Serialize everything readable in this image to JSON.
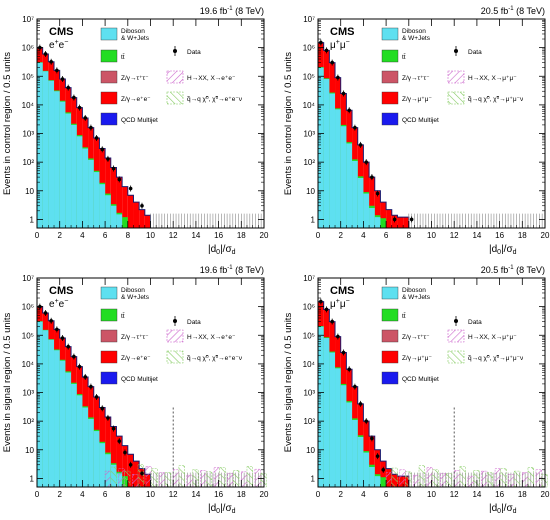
{
  "figure": {
    "panels_note": "2x2 grid of CMS histograms",
    "colors": {
      "diboson": "#5ee0f0",
      "ttbar": "#22dd22",
      "ztautau": "#cc5566",
      "zll": "#ff0000",
      "qcd": "#1a1aee",
      "hxx": "#cc66cc",
      "squark": "#88cc66",
      "data": "#000000",
      "frame": "#000000"
    }
  },
  "chart_data": [
    {
      "type": "bar",
      "panel": "top-left",
      "lumi": "19.6 fb",
      "lumi_sup": "-1",
      "energy": "(8 TeV)",
      "cms": "CMS",
      "channel": "e",
      "ylabel": "Events in control region / 0.5 units",
      "xlabel": "|d",
      "xlabel_sub": "0",
      "xlabel_tail": "|/σ",
      "xlabel_tail_sub": "d",
      "xlim": [
        0,
        20
      ],
      "ylim_log10": [
        -0.3,
        7
      ],
      "yscale": "log",
      "x_ticks": [
        "0",
        "2",
        "4",
        "6",
        "8",
        "10",
        "12",
        "14",
        "16",
        "18",
        "20"
      ],
      "y_ticks": [
        "1",
        "10",
        "10²",
        "10³",
        "10⁴",
        "10⁵",
        "10⁶",
        "10⁷"
      ],
      "legend": [
        {
          "key": "diboson",
          "label": "Diboson & W+Jets"
        },
        {
          "key": "data",
          "label": "Data"
        },
        {
          "key": "ttbar",
          "label": "tt̄"
        },
        {
          "key": "ztautau",
          "label": "Z/γ→τ⁺τ⁻"
        },
        {
          "key": "hxx",
          "label": "H→XX, X→e⁺e⁻"
        },
        {
          "key": "zll",
          "label": "Z/γ→e⁺e⁻"
        },
        {
          "key": "squark",
          "label": "q̃→q χ̃⁰, χ̃⁰→e⁺e⁻ν"
        },
        {
          "key": "qcd",
          "label": "QCD Multijet"
        }
      ],
      "total_bkg": [
        1000000,
        600000,
        320000,
        160000,
        80000,
        40000,
        18000,
        8000,
        3500,
        1600,
        700,
        300,
        140,
        65,
        30,
        14,
        7,
        4,
        2.2,
        1.4
      ],
      "diboson": [
        300000,
        150000,
        70000,
        30000,
        13000,
        5000,
        2000,
        800,
        300,
        120,
        45,
        17,
        7,
        3,
        1.5
      ],
      "ttbar_top": [
        310000,
        155000,
        73000,
        32000,
        14000,
        5500,
        2200,
        880,
        330,
        135,
        50,
        19,
        8,
        3.4,
        1.7,
        1.2
      ],
      "ztautau_top": [],
      "data_points": [
        [
          0.25,
          1000000
        ],
        [
          0.75,
          600000
        ],
        [
          1.25,
          320000
        ],
        [
          1.75,
          160000
        ],
        [
          2.25,
          80000
        ],
        [
          2.75,
          40000
        ],
        [
          3.25,
          18000
        ],
        [
          3.75,
          8000
        ],
        [
          4.25,
          3500
        ],
        [
          4.75,
          1600
        ],
        [
          5.25,
          700
        ],
        [
          5.75,
          280
        ],
        [
          6.25,
          130
        ],
        [
          6.75,
          60
        ],
        [
          7.25,
          25
        ],
        [
          8.25,
          12
        ],
        [
          9.25,
          3
        ]
      ],
      "signal_hxx": [],
      "signal_squark": [],
      "marker_line_x": null
    },
    {
      "type": "bar",
      "panel": "top-right",
      "lumi": "20.5 fb",
      "lumi_sup": "-1",
      "energy": "(8 TeV)",
      "cms": "CMS",
      "channel": "μ",
      "ylabel": "Events in control region / 0.5 units",
      "xlabel": "|d",
      "xlabel_sub": "0",
      "xlabel_tail": "|/σ",
      "xlabel_tail_sub": "d",
      "xlim": [
        0,
        20
      ],
      "ylim_log10": [
        -0.3,
        7
      ],
      "yscale": "log",
      "x_ticks": [
        "0",
        "2",
        "4",
        "6",
        "8",
        "10",
        "12",
        "14",
        "16",
        "18",
        "20"
      ],
      "y_ticks": [
        "1",
        "10",
        "10²",
        "10³",
        "10⁴",
        "10⁵",
        "10⁶",
        "10⁷"
      ],
      "legend": [
        {
          "key": "diboson",
          "label": "Diboson & W+Jets"
        },
        {
          "key": "data",
          "label": "Data"
        },
        {
          "key": "ttbar",
          "label": "tt̄"
        },
        {
          "key": "ztautau",
          "label": "Z/γ→τ⁺τ⁻"
        },
        {
          "key": "hxx",
          "label": "H→XX, X→μ⁺μ⁻"
        },
        {
          "key": "zll",
          "label": "Z/γ→μ⁺μ⁻"
        },
        {
          "key": "squark",
          "label": "q̃→q χ̃⁰, χ̃⁰→μ⁺μ⁻ν"
        },
        {
          "key": "qcd",
          "label": "QCD Multijet"
        }
      ],
      "total_bkg": [
        1500000,
        800000,
        300000,
        90000,
        25000,
        6500,
        1600,
        400,
        100,
        30,
        10,
        4,
        2.2,
        1.4,
        1.2,
        1.2
      ],
      "diboson": [
        200000,
        80000,
        25000,
        7000,
        1800,
        450,
        110,
        28,
        8,
        2.5,
        1.2
      ],
      "ttbar_top": [
        210000,
        85000,
        27000,
        7600,
        2000,
        500,
        125,
        32,
        9,
        3,
        1.4,
        1.1
      ],
      "ztautau_top": [],
      "data_points": [
        [
          0.25,
          1500000
        ],
        [
          0.75,
          800000
        ],
        [
          1.25,
          300000
        ],
        [
          1.75,
          90000
        ],
        [
          2.25,
          25000
        ],
        [
          2.75,
          6500
        ],
        [
          3.25,
          1600
        ],
        [
          3.75,
          400
        ],
        [
          4.25,
          100
        ],
        [
          4.75,
          30
        ],
        [
          5.25,
          8
        ],
        [
          6.75,
          1
        ],
        [
          8.25,
          1
        ]
      ],
      "signal_hxx": [],
      "signal_squark": [],
      "marker_line_x": null
    },
    {
      "type": "bar",
      "panel": "bottom-left",
      "lumi": "19.6 fb",
      "lumi_sup": "-1",
      "energy": "(8 TeV)",
      "cms": "CMS",
      "channel": "e",
      "ylabel": "Events in signal region / 0.5 units",
      "xlabel": "|d",
      "xlabel_sub": "0",
      "xlabel_tail": "|/σ",
      "xlabel_tail_sub": "d",
      "xlim": [
        0,
        20
      ],
      "ylim_log10": [
        -0.3,
        7
      ],
      "yscale": "log",
      "x_ticks": [
        "0",
        "2",
        "4",
        "6",
        "8",
        "10",
        "12",
        "14",
        "16",
        "18",
        "20"
      ],
      "y_ticks": [
        "1",
        "10",
        "10²",
        "10³",
        "10⁴",
        "10⁵",
        "10⁶",
        "10⁷"
      ],
      "legend": [
        {
          "key": "diboson",
          "label": "Diboson & W+Jets"
        },
        {
          "key": "ttbar",
          "label": "tt̄"
        },
        {
          "key": "data",
          "label": "Data"
        },
        {
          "key": "ztautau",
          "label": "Z/γ→τ⁺τ⁻"
        },
        {
          "key": "hxx",
          "label": "H→XX, X→e⁺e⁻"
        },
        {
          "key": "zll",
          "label": "Z/γ→e⁺e⁻"
        },
        {
          "key": "squark",
          "label": "q̃→q χ̃⁰, χ̃⁰→e⁺e⁻ν"
        },
        {
          "key": "qcd",
          "label": "QCD Multijet"
        }
      ],
      "total_bkg": [
        1000000,
        600000,
        320000,
        160000,
        80000,
        40000,
        18000,
        8000,
        3500,
        1600,
        700,
        300,
        140,
        65,
        30,
        14,
        7,
        4,
        2.2,
        1.4
      ],
      "diboson": [
        300000,
        150000,
        70000,
        30000,
        13000,
        5000,
        2000,
        800,
        300,
        120,
        45,
        17,
        7,
        3,
        1.5
      ],
      "ttbar_top": [
        310000,
        155000,
        73000,
        32000,
        14000,
        5500,
        2200,
        880,
        330,
        135,
        50,
        19,
        8,
        3.4,
        1.7,
        1.2
      ],
      "ztautau_top": [],
      "data_points": [
        [
          0.25,
          1000000
        ],
        [
          0.75,
          600000
        ],
        [
          1.25,
          320000
        ],
        [
          1.75,
          160000
        ],
        [
          2.25,
          80000
        ],
        [
          2.75,
          40000
        ],
        [
          3.25,
          18000
        ],
        [
          3.75,
          8000
        ],
        [
          4.25,
          3500
        ],
        [
          4.75,
          1600
        ],
        [
          5.25,
          700
        ],
        [
          5.75,
          280
        ],
        [
          6.25,
          130
        ],
        [
          6.75,
          55
        ],
        [
          7.25,
          20
        ],
        [
          7.75,
          8
        ],
        [
          8.25,
          3
        ],
        [
          9.25,
          1.5
        ]
      ],
      "signal_hxx": [
        1.8,
        2.2,
        1.4,
        2.6,
        1.6,
        2.0,
        1.3,
        1.9,
        2.4,
        1.5,
        1.7,
        2.1
      ],
      "signal_squark": [
        2.5,
        1.8,
        3.0,
        2.2,
        1.6,
        2.8,
        2.0,
        1.7,
        2.4,
        1.9,
        2.6,
        1.5
      ],
      "marker_line_x": 12
    },
    {
      "type": "bar",
      "panel": "bottom-right",
      "lumi": "20.5 fb",
      "lumi_sup": "-1",
      "energy": "(8 TeV)",
      "cms": "CMS",
      "channel": "μ",
      "ylabel": "Events in signal region / 0.5 units",
      "xlabel": "|d",
      "xlabel_sub": "0",
      "xlabel_tail": "|/σ",
      "xlabel_tail_sub": "d",
      "xlim": [
        0,
        20
      ],
      "ylim_log10": [
        -0.3,
        7
      ],
      "yscale": "log",
      "x_ticks": [
        "0",
        "2",
        "4",
        "6",
        "8",
        "10",
        "12",
        "14",
        "16",
        "18",
        "20"
      ],
      "y_ticks": [
        "1",
        "10",
        "10²",
        "10³",
        "10⁴",
        "10⁵",
        "10⁶",
        "10⁷"
      ],
      "legend": [
        {
          "key": "diboson",
          "label": "Diboson & W+Jets"
        },
        {
          "key": "ttbar",
          "label": "tt̄"
        },
        {
          "key": "data",
          "label": "Data"
        },
        {
          "key": "ztautau",
          "label": "Z/γ→τ⁺τ⁻"
        },
        {
          "key": "hxx",
          "label": "H→XX, X→μ⁺μ⁻"
        },
        {
          "key": "zll",
          "label": "Z/γ→μ⁺μ⁻"
        },
        {
          "key": "squark",
          "label": "q̃→q χ̃⁰, χ̃⁰→μ⁺μ⁻ν"
        },
        {
          "key": "qcd",
          "label": "QCD Multijet"
        }
      ],
      "total_bkg": [
        1500000,
        800000,
        300000,
        90000,
        25000,
        6500,
        1600,
        400,
        100,
        30,
        10,
        4,
        2.2,
        1.4,
        1.2,
        1.2
      ],
      "diboson": [
        200000,
        80000,
        25000,
        7000,
        1800,
        450,
        110,
        28,
        8,
        2.5,
        1.2
      ],
      "ttbar_top": [
        210000,
        85000,
        27000,
        7600,
        2000,
        500,
        125,
        32,
        9,
        3,
        1.4,
        1.1
      ],
      "ztautau_top": [],
      "data_points": [
        [
          0.25,
          1500000
        ],
        [
          0.75,
          800000
        ],
        [
          1.25,
          300000
        ],
        [
          1.75,
          90000
        ],
        [
          2.25,
          25000
        ],
        [
          2.75,
          6500
        ],
        [
          3.25,
          1600
        ],
        [
          3.75,
          400
        ],
        [
          4.25,
          100
        ],
        [
          4.75,
          25
        ],
        [
          5.25,
          6
        ],
        [
          5.75,
          2
        ]
      ],
      "signal_hxx": [
        1.6,
        2.0,
        1.3,
        2.4,
        1.5,
        1.9,
        1.2,
        1.8,
        2.2,
        1.4,
        1.6,
        2.0
      ],
      "signal_squark": [
        2.3,
        1.7,
        2.8,
        2.0,
        1.5,
        2.6,
        1.9,
        1.6,
        2.2,
        1.8,
        2.4,
        1.4
      ],
      "marker_line_x": 12
    }
  ]
}
